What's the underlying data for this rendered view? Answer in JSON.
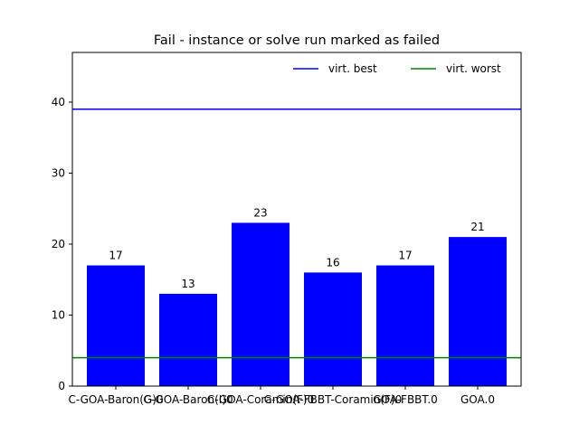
{
  "chart_data": {
    "type": "bar",
    "title": "Fail - instance or solve run marked as failed",
    "xlabel": "",
    "ylabel": "",
    "categories": [
      "C-GOA-Baron(G)0",
      "C-GOA-Baron(I)0",
      "C-GOA-Coramin(F)0",
      "C-GOA-FBBT-Coramin(F)0",
      "GOA-FBBT.0",
      "GOA.0"
    ],
    "values": [
      17,
      13,
      23,
      16,
      17,
      21
    ],
    "bar_color": "#0000ff",
    "ylim": [
      0,
      47
    ],
    "yticks": [
      0,
      10,
      20,
      30,
      40
    ],
    "reference_lines": [
      {
        "name": "virt. best",
        "value": 39,
        "color": "#0000ff"
      },
      {
        "name": "virt. worst",
        "value": 4,
        "color": "#008000"
      }
    ],
    "legend_position": "top-right",
    "grid": false
  }
}
